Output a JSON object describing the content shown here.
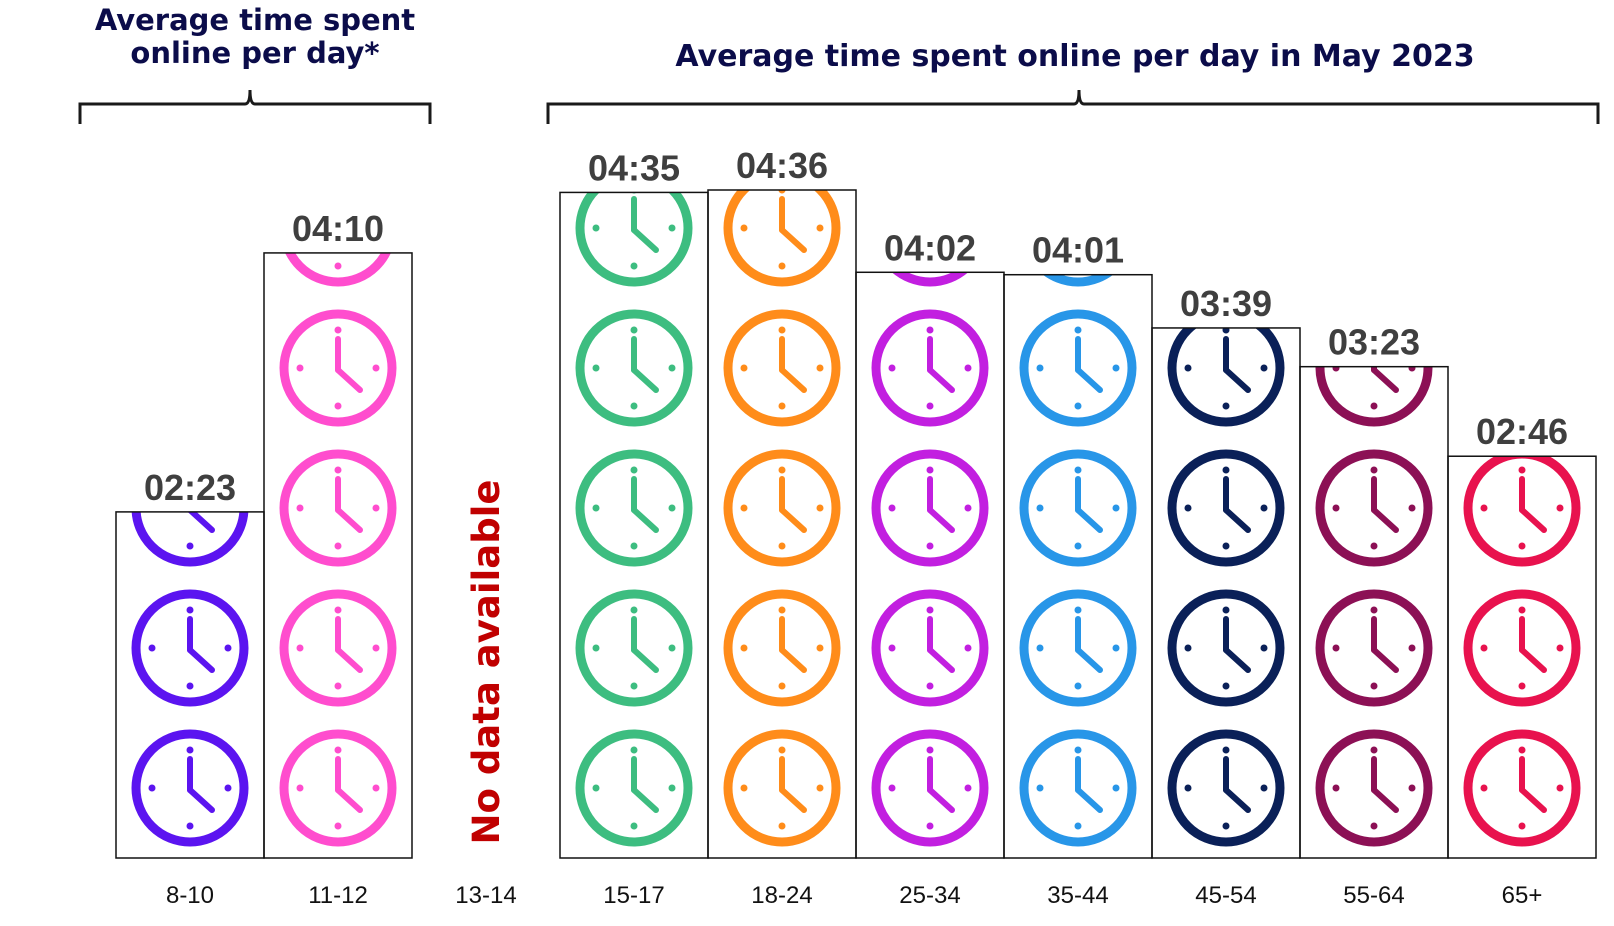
{
  "headers": {
    "left_line1": "Average time spent",
    "left_line2": "online per day*",
    "right": "Average time spent online per day in May 2023"
  },
  "chart_data": {
    "type": "bar",
    "title": "",
    "xlabel": "",
    "ylabel": "",
    "categories": [
      "8-10",
      "11-12",
      "13-14",
      "15-17",
      "18-24",
      "25-34",
      "35-44",
      "45-54",
      "55-64",
      "65+"
    ],
    "value_labels": [
      "02:23",
      "04:10",
      "",
      "04:35",
      "04:36",
      "04:02",
      "04:01",
      "03:39",
      "03:23",
      "02:46"
    ],
    "values_minutes": [
      143,
      250,
      null,
      275,
      276,
      242,
      241,
      219,
      203,
      166
    ],
    "ylim_minutes": [
      0,
      276
    ],
    "unit": "hours:minutes per day",
    "icon": "clock-icon",
    "no_data_note": "No data available",
    "colors": [
      "#5b14f0",
      "#ff4dce",
      null,
      "#3dbd80",
      "#ff8c1a",
      "#c21fe0",
      "#2896e8",
      "#0a2058",
      "#8c1055",
      "#e8124e"
    ],
    "label_color": "#3f3f3f",
    "no_data_color": "#c00000",
    "grid": false,
    "legend": "none"
  }
}
